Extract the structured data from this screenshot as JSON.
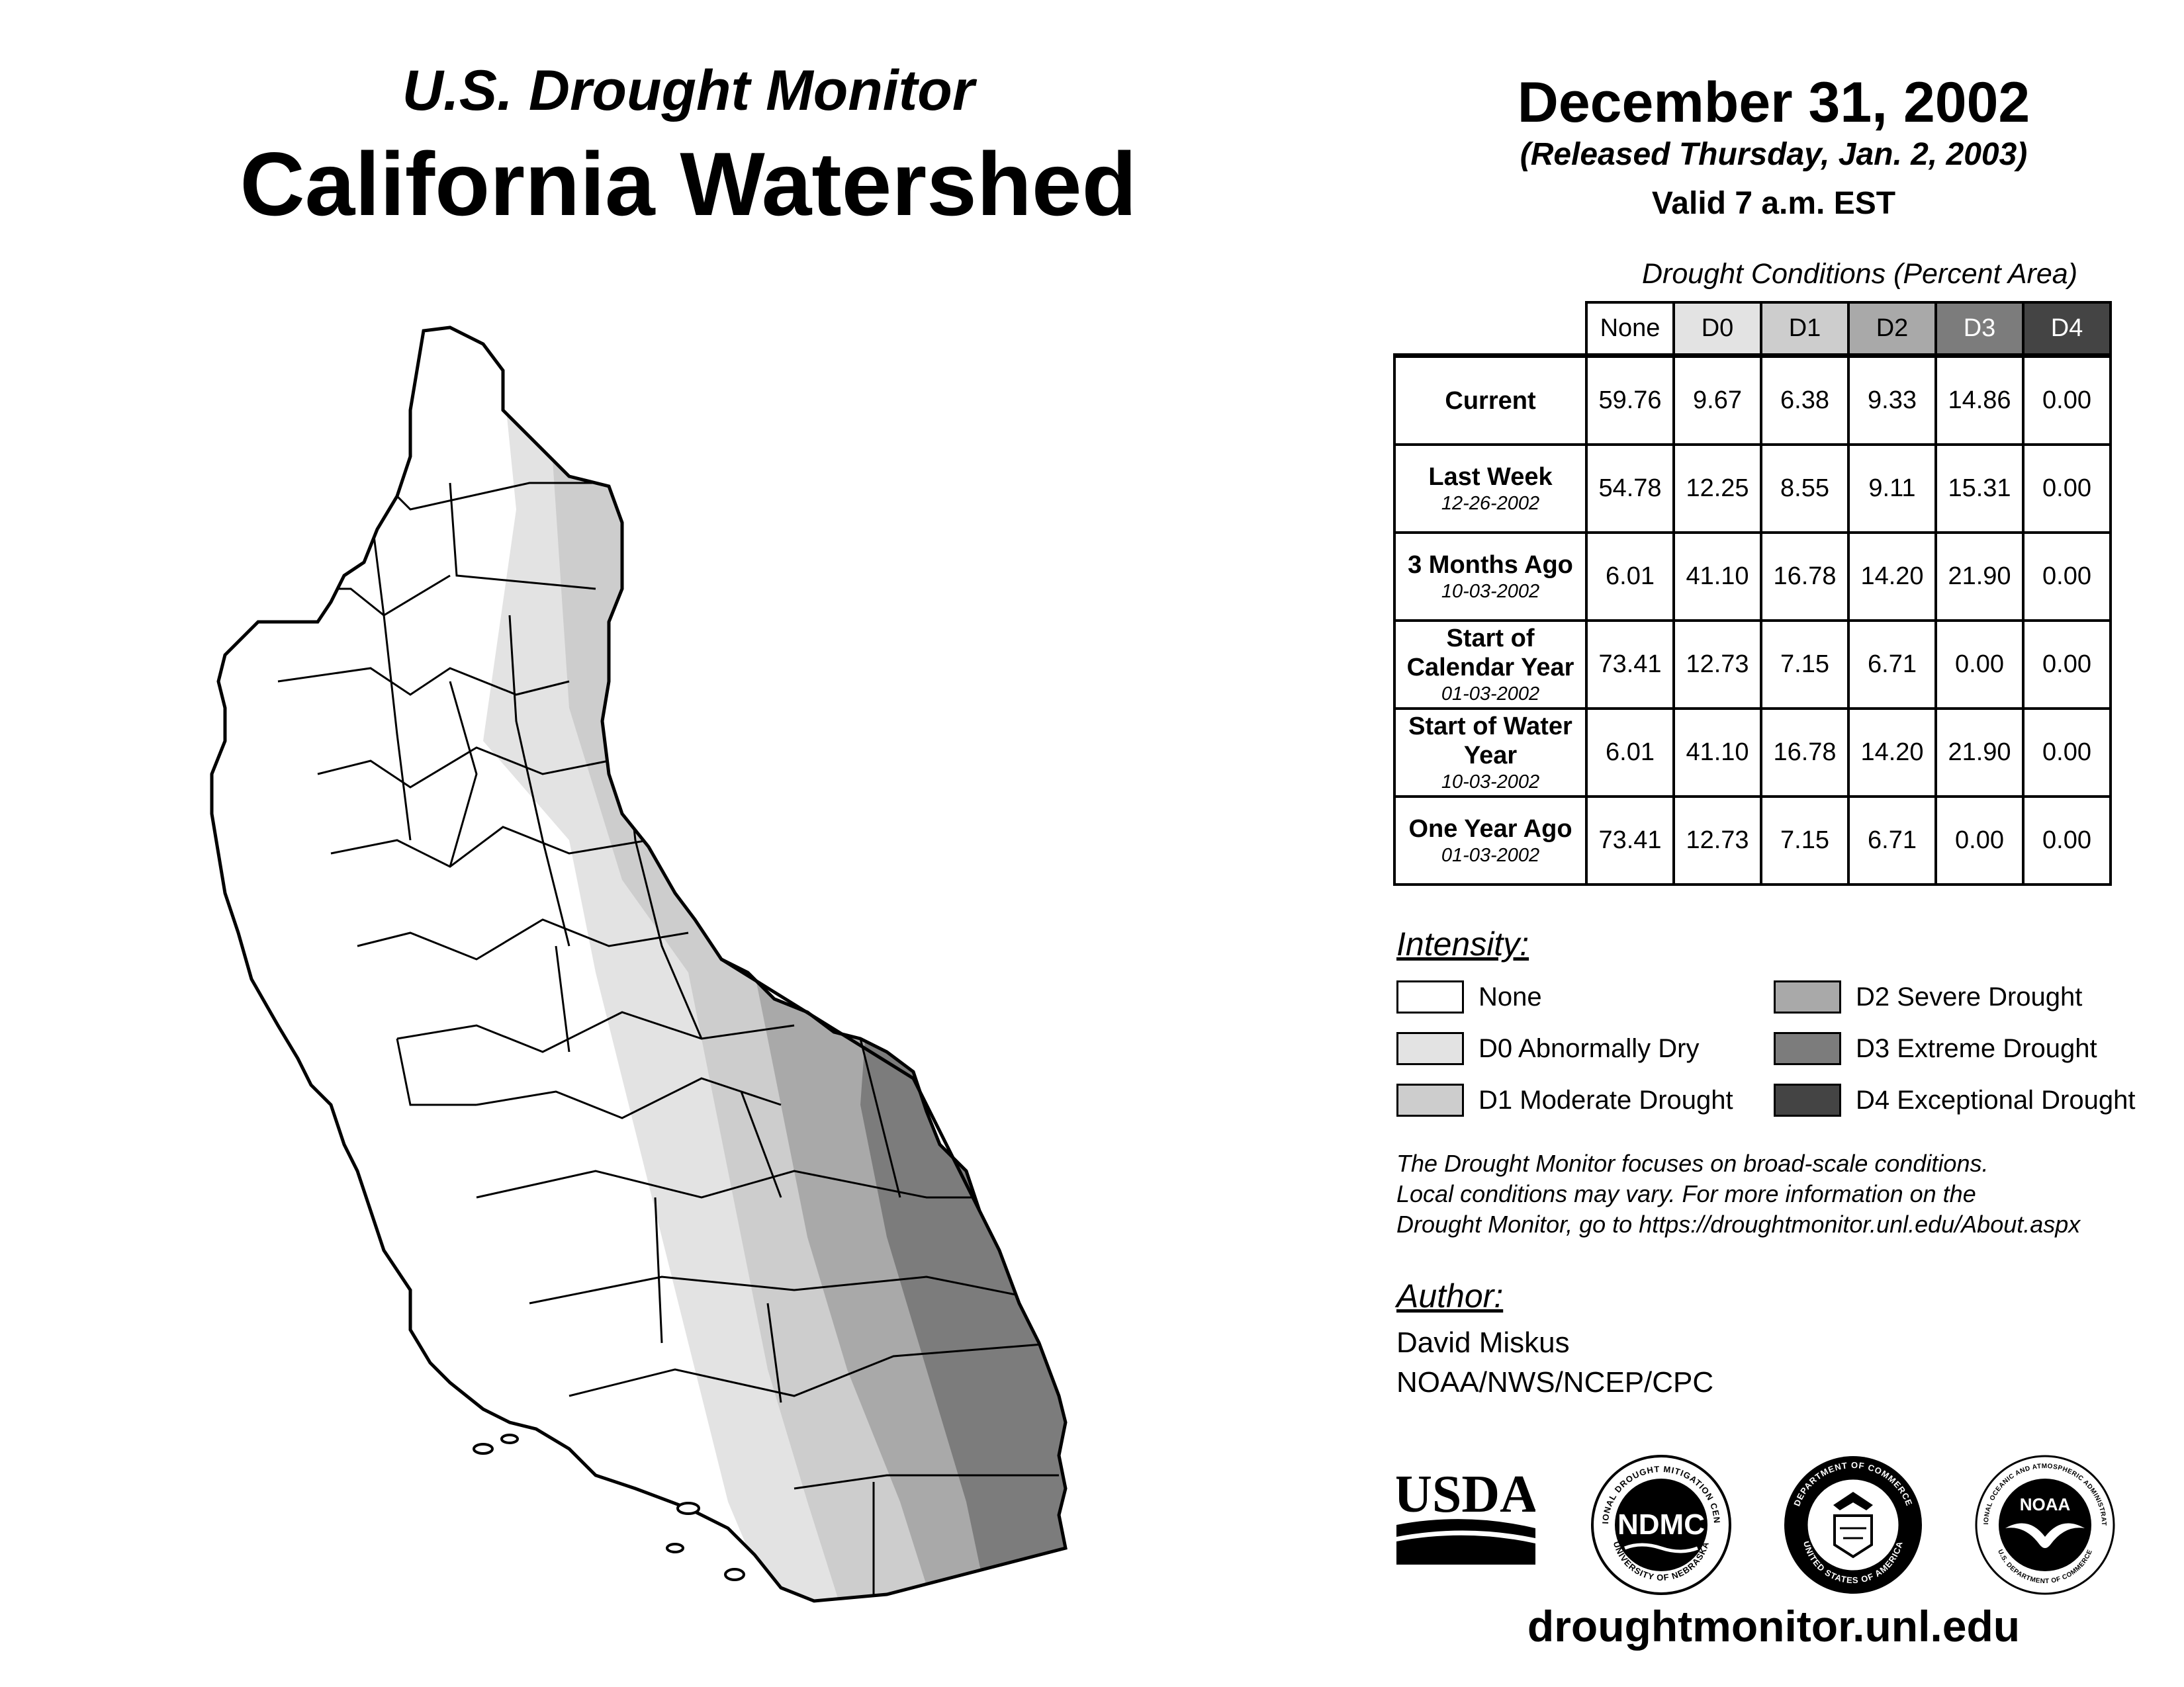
{
  "title": {
    "subtitle": "U.S. Drought Monitor",
    "main": "California Watershed"
  },
  "date": {
    "map_date": "December 31, 2002",
    "released": "(Released Thursday, Jan. 2, 2003)",
    "valid": "Valid 7 a.m. EST"
  },
  "table": {
    "caption": "Drought Conditions (Percent Area)",
    "headers": [
      "None",
      "D0",
      "D1",
      "D2",
      "D3",
      "D4"
    ],
    "rows": [
      {
        "label": "Current",
        "date": "",
        "values": [
          "59.76",
          "9.67",
          "6.38",
          "9.33",
          "14.86",
          "0.00"
        ]
      },
      {
        "label": "Last Week",
        "date": "12-26-2002",
        "values": [
          "54.78",
          "12.25",
          "8.55",
          "9.11",
          "15.31",
          "0.00"
        ]
      },
      {
        "label": "3 Months Ago",
        "date": "10-03-2002",
        "values": [
          "6.01",
          "41.10",
          "16.78",
          "14.20",
          "21.90",
          "0.00"
        ]
      },
      {
        "label": "Start of Calendar Year",
        "date": "01-03-2002",
        "values": [
          "73.41",
          "12.73",
          "7.15",
          "6.71",
          "0.00",
          "0.00"
        ]
      },
      {
        "label": "Start of Water Year",
        "date": "10-03-2002",
        "values": [
          "6.01",
          "41.10",
          "16.78",
          "14.20",
          "21.90",
          "0.00"
        ]
      },
      {
        "label": "One Year Ago",
        "date": "01-03-2002",
        "values": [
          "73.41",
          "12.73",
          "7.15",
          "6.71",
          "0.00",
          "0.00"
        ]
      }
    ]
  },
  "intensity": {
    "title": "Intensity:",
    "items": [
      {
        "label": "None",
        "color": "#ffffff"
      },
      {
        "label": "D0 Abnormally Dry",
        "color": "#e3e3e3"
      },
      {
        "label": "D1 Moderate Drought",
        "color": "#cdcdcd"
      },
      {
        "label": "D2 Severe Drought",
        "color": "#a9a9a9"
      },
      {
        "label": "D3 Extreme Drought",
        "color": "#7c7c7c"
      },
      {
        "label": "D4 Exceptional Drought",
        "color": "#444444"
      }
    ]
  },
  "disclaimer": {
    "line1": "The Drought Monitor focuses on broad-scale conditions.",
    "line2": "Local conditions may vary. For more information on the",
    "line3": "Drought Monitor, go to https://droughtmonitor.unl.edu/About.aspx"
  },
  "author": {
    "title": "Author:",
    "name": "David Miskus",
    "org": "NOAA/NWS/NCEP/CPC"
  },
  "logos": {
    "usda": "USDA",
    "ndmc": "NDMC",
    "ndmc_ring_top": "NATIONAL DROUGHT MITIGATION CENTER",
    "ndmc_ring_bottom": "UNIVERSITY OF NEBRASKA",
    "doc_ring_top": "DEPARTMENT OF COMMERCE",
    "doc_ring_bottom": "UNITED STATES OF AMERICA",
    "noaa": "NOAA",
    "noaa_ring_top": "NATIONAL OCEANIC AND ATMOSPHERIC ADMINISTRATION",
    "noaa_ring_bottom": "U.S. DEPARTMENT OF COMMERCE"
  },
  "footer": {
    "url": "droughtmonitor.unl.edu"
  }
}
